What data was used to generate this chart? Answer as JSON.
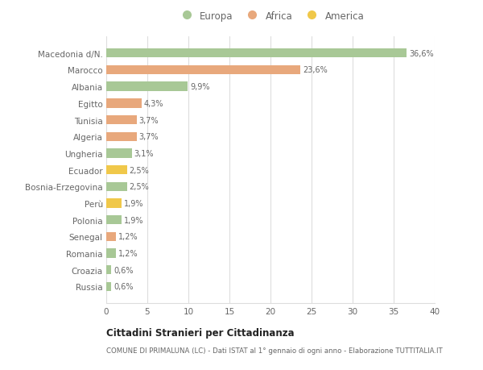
{
  "categories": [
    "Macedonia d/N.",
    "Marocco",
    "Albania",
    "Egitto",
    "Tunisia",
    "Algeria",
    "Ungheria",
    "Ecuador",
    "Bosnia-Erzegovina",
    "Perù",
    "Polonia",
    "Senegal",
    "Romania",
    "Croazia",
    "Russia"
  ],
  "values": [
    36.6,
    23.6,
    9.9,
    4.3,
    3.7,
    3.7,
    3.1,
    2.5,
    2.5,
    1.9,
    1.9,
    1.2,
    1.2,
    0.6,
    0.6
  ],
  "labels": [
    "36,6%",
    "23,6%",
    "9,9%",
    "4,3%",
    "3,7%",
    "3,7%",
    "3,1%",
    "2,5%",
    "2,5%",
    "1,9%",
    "1,9%",
    "1,2%",
    "1,2%",
    "0,6%",
    "0,6%"
  ],
  "continents": [
    "Europa",
    "Africa",
    "Europa",
    "Africa",
    "Africa",
    "Africa",
    "Europa",
    "America",
    "Europa",
    "America",
    "Europa",
    "Africa",
    "Europa",
    "Europa",
    "Europa"
  ],
  "colors": {
    "Europa": "#a8c896",
    "Africa": "#e8a87c",
    "America": "#f0c84a"
  },
  "legend_labels": [
    "Europa",
    "Africa",
    "America"
  ],
  "legend_colors": [
    "#a8c896",
    "#e8a87c",
    "#f0c84a"
  ],
  "title": "Cittadini Stranieri per Cittadinanza",
  "subtitle": "COMUNE DI PRIMALUNA (LC) - Dati ISTAT al 1° gennaio di ogni anno - Elaborazione TUTTITALIA.IT",
  "xlim": [
    0,
    40
  ],
  "xticks": [
    0,
    5,
    10,
    15,
    20,
    25,
    30,
    35,
    40
  ],
  "background_color": "#ffffff",
  "grid_color": "#dddddd",
  "bar_height": 0.55,
  "text_color": "#666666",
  "title_color": "#222222",
  "subtitle_color": "#666666"
}
